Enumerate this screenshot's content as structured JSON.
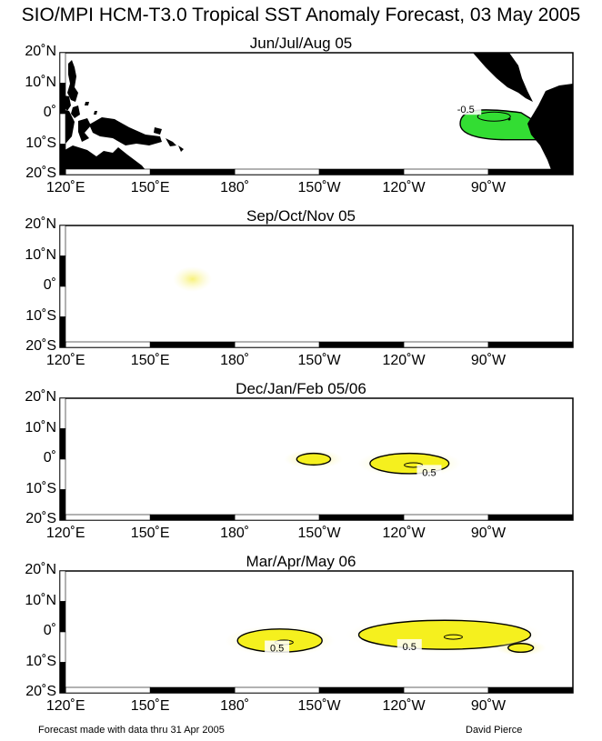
{
  "figure": {
    "title": "SIO/MPI HCM-T3.0 Tropical SST Anomaly Forecast, 03 May 2005",
    "footer_left": "Forecast made with data thru 31 Apr 2005",
    "footer_right": "David Pierce"
  },
  "colors": {
    "land": "#000000",
    "negative_fill": "#33dd33",
    "positive_fill": "#f5f01e",
    "positive_light": "#fbf7b0",
    "contour": "#000000"
  },
  "chart_data": [
    {
      "type": "contour map",
      "title": "Jun/Jul/Aug 05",
      "ytick_labels": [
        "20˚N",
        "10˚N",
        "0˚",
        "10˚S",
        "20˚S"
      ],
      "xtick_labels": [
        "120˚E",
        "150˚E",
        "180˚",
        "150˚W",
        "120˚W",
        "90˚W"
      ],
      "lon_range_east": [
        118,
        300
      ],
      "lat_range": [
        -21,
        21
      ],
      "contour_labels": [
        "-0.5"
      ],
      "anomalies": [
        {
          "sign": "negative",
          "lon": [
            260,
            287
          ],
          "lat": [
            -9,
            2
          ],
          "peak": [
            272,
            -1
          ],
          "contour": -0.5
        }
      ]
    },
    {
      "type": "contour map",
      "title": "Sep/Oct/Nov 05",
      "ytick_labels": [
        "20˚N",
        "10˚N",
        "0˚",
        "10˚S",
        "20˚S"
      ],
      "xtick_labels": [
        "120˚E",
        "150˚E",
        "180˚",
        "150˚W",
        "120˚W",
        "90˚W"
      ],
      "lon_range_east": [
        118,
        300
      ],
      "lat_range": [
        -21,
        21
      ],
      "contour_labels": [],
      "anomalies": [
        {
          "sign": "positive weak",
          "lon": [
            160,
            170
          ],
          "lat": [
            0,
            5
          ]
        }
      ]
    },
    {
      "type": "contour map",
      "title": "Dec/Jan/Feb 05/06",
      "ytick_labels": [
        "20˚N",
        "10˚N",
        "0˚",
        "10˚S",
        "20˚S"
      ],
      "xtick_labels": [
        "120˚E",
        "150˚E",
        "180˚",
        "150˚W",
        "120˚W",
        "90˚W"
      ],
      "lon_range_east": [
        118,
        300
      ],
      "lat_range": [
        -21,
        21
      ],
      "contour_labels": [
        "0.5"
      ],
      "anomalies": [
        {
          "sign": "positive",
          "lon": [
            202,
            214
          ],
          "lat": [
            -2,
            2
          ],
          "contour": 0.5
        },
        {
          "sign": "positive",
          "lon": [
            228,
            256
          ],
          "lat": [
            -5,
            2
          ],
          "contour": 0.5
        }
      ]
    },
    {
      "type": "contour map",
      "title": "Mar/Apr/May 06",
      "ytick_labels": [
        "20˚N",
        "10˚N",
        "0˚",
        "10˚S",
        "20˚S"
      ],
      "xtick_labels": [
        "120˚E",
        "150˚E",
        "180˚",
        "150˚W",
        "120˚W",
        "90˚W"
      ],
      "lon_range_east": [
        118,
        300
      ],
      "lat_range": [
        -21,
        21
      ],
      "contour_labels": [
        "0.5",
        "0.5"
      ],
      "anomalies": [
        {
          "sign": "positive",
          "lon": [
            181,
            211
          ],
          "lat": [
            -7,
            1
          ],
          "contour": 0.5
        },
        {
          "sign": "positive",
          "lon": [
            224,
            285
          ],
          "lat": [
            -6,
            4
          ],
          "contour": 0.5
        },
        {
          "sign": "positive",
          "lon": [
            277,
            286
          ],
          "lat": [
            -7,
            -4
          ],
          "contour": 0.5
        }
      ]
    }
  ]
}
